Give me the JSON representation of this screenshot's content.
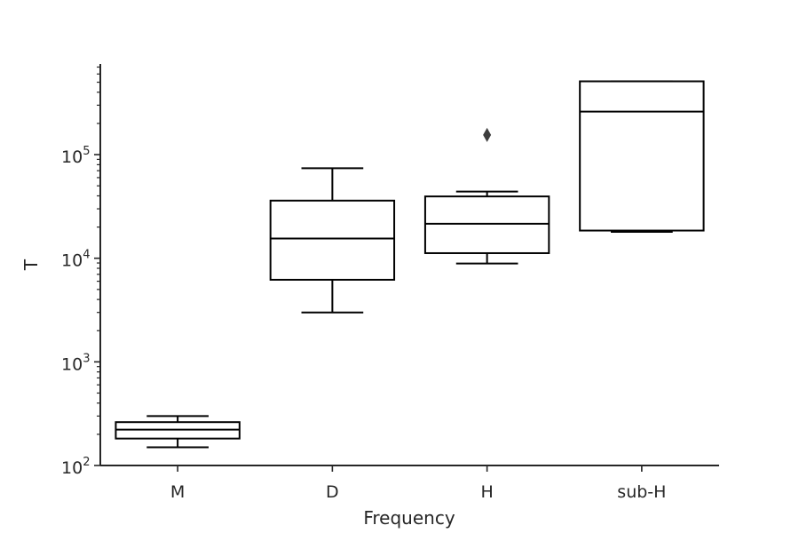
{
  "chart_data": {
    "type": "box",
    "title": "",
    "xlabel": "Frequency",
    "ylabel": "T",
    "yscale": "log",
    "ylim": [
      100,
      750000
    ],
    "ytick_labels": [
      {
        "value": 100,
        "base": "10",
        "exp": "2"
      },
      {
        "value": 1000,
        "base": "10",
        "exp": "3"
      },
      {
        "value": 10000,
        "base": "10",
        "exp": "4"
      },
      {
        "value": 100000,
        "base": "10",
        "exp": "5"
      }
    ],
    "categories": [
      "M",
      "D",
      "H",
      "sub-H"
    ],
    "boxes": [
      {
        "category": "M",
        "whislo": 150,
        "q1": 182,
        "med": 222,
        "q3": 262,
        "whishi": 300,
        "fliers": []
      },
      {
        "category": "D",
        "whislo": 3000,
        "q1": 6200,
        "med": 15500,
        "q3": 36000,
        "whishi": 74000,
        "fliers": []
      },
      {
        "category": "H",
        "whislo": 8900,
        "q1": 11200,
        "med": 21500,
        "q3": 39500,
        "whishi": 44000,
        "fliers": [
          155000
        ]
      },
      {
        "category": "sub-H",
        "whislo": 18000,
        "q1": 18500,
        "med": 260000,
        "q3": 510000,
        "whishi": 510000,
        "fliers": []
      }
    ],
    "grid": false,
    "legend": "none",
    "colors": {
      "box_fill": "#ffffff",
      "box_edge": "#000000",
      "flier": "#3d3d3d",
      "axis": "#262626"
    }
  }
}
